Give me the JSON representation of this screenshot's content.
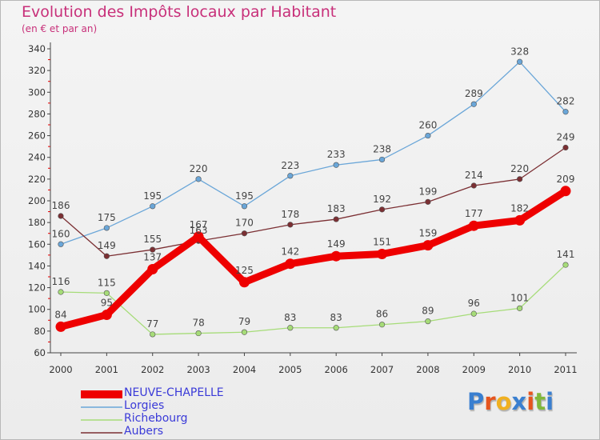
{
  "header": {
    "title": "Evolution des Impôts locaux par Habitant",
    "subtitle": "(en € et par an)"
  },
  "logo": {
    "letters": [
      "P",
      "r",
      "o",
      "x",
      "i",
      "t",
      "i"
    ],
    "colors": [
      "#3a7fd0",
      "#e6551e",
      "#f0b020",
      "#3a7fd0",
      "#e6551e",
      "#80b83a",
      "#3a7fd0"
    ]
  },
  "chart_data": {
    "type": "line",
    "x": [
      "2000",
      "2001",
      "2002",
      "2003",
      "2004",
      "2005",
      "2006",
      "2007",
      "2008",
      "2009",
      "2010",
      "2011"
    ],
    "ylim": [
      60,
      340
    ],
    "yticks": [
      60,
      80,
      100,
      120,
      140,
      160,
      180,
      200,
      220,
      240,
      260,
      280,
      300,
      320,
      340
    ],
    "grid": false,
    "legend_position": "bottom-left",
    "series": [
      {
        "name": "NEUVE-CHAPELLE",
        "color": "#ee0000",
        "values": [
          84,
          95,
          137,
          167,
          125,
          142,
          149,
          151,
          159,
          177,
          182,
          209
        ],
        "labels": [
          "84",
          "95",
          "137",
          "167",
          "125",
          "142",
          "149",
          "151",
          "159",
          "177",
          "182",
          "209"
        ]
      },
      {
        "name": "Lorgies",
        "color": "#6aa6d8",
        "values": [
          160,
          175,
          195,
          220,
          195,
          223,
          233,
          238,
          260,
          289,
          328,
          282
        ],
        "labels": [
          "160",
          "175",
          "195",
          "220",
          "195",
          "223",
          "233",
          "238",
          "260",
          "289",
          "328",
          "282"
        ]
      },
      {
        "name": "Richebourg",
        "color": "#a6dc78",
        "values": [
          116,
          115,
          77,
          78,
          79,
          83,
          83,
          86,
          89,
          96,
          101,
          141
        ],
        "labels": [
          "116",
          "115",
          "77",
          "78",
          "79",
          "83",
          "83",
          "86",
          "89",
          "96",
          "101",
          "141"
        ]
      },
      {
        "name": "Aubers",
        "color": "#7b2f33",
        "values": [
          186,
          149,
          155,
          163,
          170,
          178,
          183,
          192,
          199,
          214,
          220,
          249
        ],
        "labels": [
          "186",
          "149",
          "155",
          "163",
          "170",
          "178",
          "183",
          "192",
          "199",
          "214",
          "220",
          "249"
        ]
      }
    ]
  }
}
